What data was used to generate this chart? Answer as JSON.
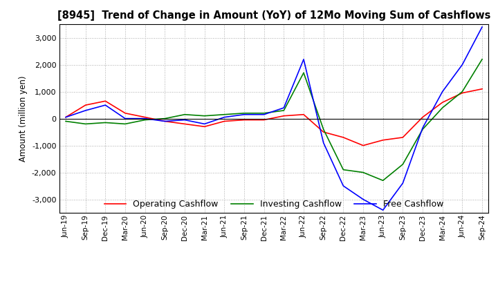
{
  "title": "[8945]  Trend of Change in Amount (YoY) of 12Mo Moving Sum of Cashflows",
  "ylabel": "Amount (million yen)",
  "x_labels": [
    "Jun-19",
    "Sep-19",
    "Dec-19",
    "Mar-20",
    "Jun-20",
    "Sep-20",
    "Dec-20",
    "Mar-21",
    "Jun-21",
    "Sep-21",
    "Dec-21",
    "Mar-22",
    "Jun-22",
    "Sep-22",
    "Dec-22",
    "Mar-23",
    "Jun-23",
    "Sep-23",
    "Dec-23",
    "Mar-24",
    "Jun-24",
    "Sep-24"
  ],
  "operating": [
    50,
    500,
    650,
    200,
    50,
    -100,
    -200,
    -300,
    -100,
    -50,
    -50,
    100,
    150,
    -500,
    -700,
    -1000,
    -800,
    -700,
    50,
    600,
    950,
    1100
  ],
  "investing": [
    -100,
    -200,
    -150,
    -200,
    -50,
    0,
    150,
    100,
    150,
    200,
    200,
    300,
    1700,
    -400,
    -1900,
    -2000,
    -2300,
    -1700,
    -400,
    400,
    1000,
    2200
  ],
  "free": [
    50,
    300,
    500,
    0,
    0,
    -100,
    -50,
    -200,
    50,
    150,
    150,
    400,
    2200,
    -900,
    -2500,
    -3000,
    -3400,
    -2400,
    -350,
    1000,
    2000,
    3400
  ],
  "operating_color": "#ff0000",
  "investing_color": "#008000",
  "free_color": "#0000ff",
  "ylim": [
    -3500,
    3500
  ],
  "yticks": [
    -3000,
    -2000,
    -1000,
    0,
    1000,
    2000,
    3000
  ],
  "legend_labels": [
    "Operating Cashflow",
    "Investing Cashflow",
    "Free Cashflow"
  ],
  "bg_color": "#ffffff",
  "grid_color": "#aaaaaa"
}
